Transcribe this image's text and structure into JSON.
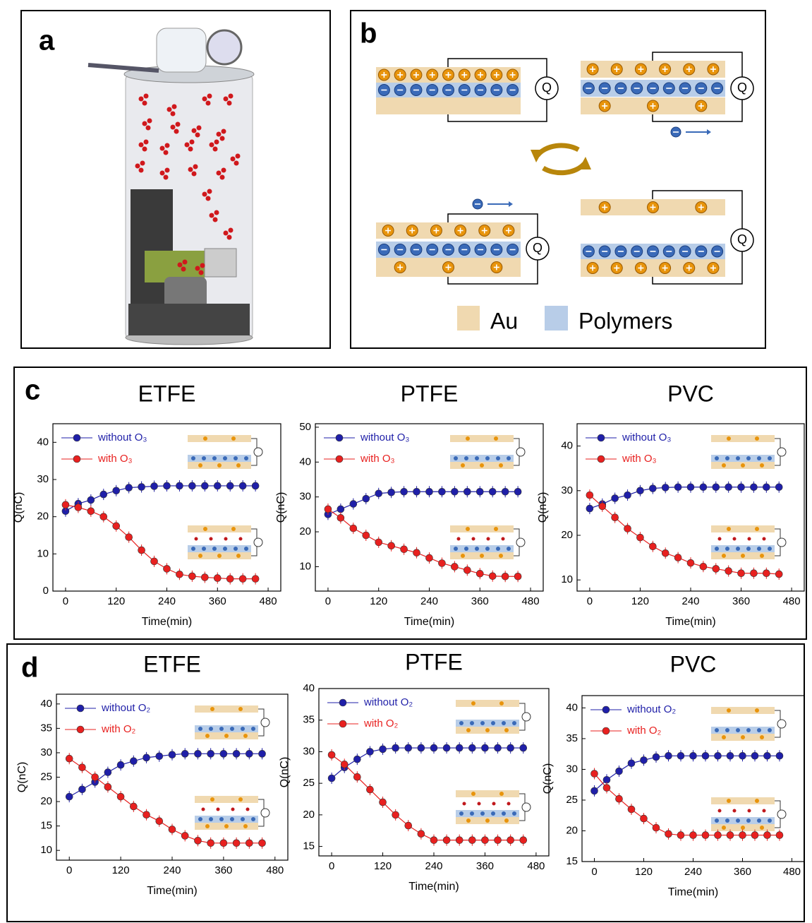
{
  "panels": {
    "a": "a",
    "b": "b",
    "c": "c",
    "d": "d"
  },
  "panel_b": {
    "meter_label": "Q",
    "legend": [
      "Au",
      "Polymers"
    ]
  },
  "chart_data": [
    {
      "type": "line",
      "title": "ETFE",
      "x_label": "Time(min)",
      "y_label": "Q(nC)",
      "x": [
        0,
        30,
        60,
        90,
        120,
        150,
        180,
        210,
        240,
        270,
        300,
        330,
        360,
        390,
        420,
        450
      ],
      "xlim": [
        -30,
        510
      ],
      "xticks": [
        0,
        120,
        240,
        360,
        480
      ],
      "ylim": [
        0,
        45
      ],
      "yticks": [
        0,
        10,
        20,
        30,
        40
      ],
      "legend": "upper left",
      "series": [
        {
          "name": "without O₃",
          "color": "#1f1fa8",
          "values": [
            21.5,
            23.5,
            24.5,
            26,
            27,
            27.8,
            28,
            28.2,
            28.3,
            28.3,
            28.3,
            28.3,
            28.3,
            28.3,
            28.3,
            28.3
          ]
        },
        {
          "name": "with O₃",
          "color": "#e8201f",
          "values": [
            23.2,
            22.5,
            21.5,
            20,
            17.5,
            14.5,
            11,
            8,
            6,
            4.5,
            4,
            3.7,
            3.5,
            3.3,
            3.3,
            3.3
          ]
        }
      ]
    },
    {
      "type": "line",
      "title": "PTFE",
      "x_label": "Time(min)",
      "y_label": "Q(nC)",
      "x": [
        0,
        30,
        60,
        90,
        120,
        150,
        180,
        210,
        240,
        270,
        300,
        330,
        360,
        390,
        420,
        450
      ],
      "xlim": [
        -30,
        510
      ],
      "xticks": [
        0,
        120,
        240,
        360,
        480
      ],
      "ylim": [
        3,
        51
      ],
      "yticks": [
        10,
        20,
        30,
        40,
        50
      ],
      "legend": "upper left",
      "series": [
        {
          "name": "without O₃",
          "color": "#1f1fa8",
          "values": [
            25,
            26.5,
            28,
            29.5,
            31,
            31.3,
            31.5,
            31.5,
            31.5,
            31.5,
            31.5,
            31.5,
            31.5,
            31.5,
            31.5,
            31.5
          ]
        },
        {
          "name": "with O₃",
          "color": "#e8201f",
          "values": [
            26.5,
            24,
            21,
            19,
            17,
            16,
            15,
            14,
            12.5,
            11,
            10,
            9,
            8,
            7.3,
            7.2,
            7.2
          ]
        }
      ]
    },
    {
      "type": "line",
      "title": "PVC",
      "x_label": "Time(min)",
      "y_label": "Q(nC)",
      "x": [
        0,
        30,
        60,
        90,
        120,
        150,
        180,
        210,
        240,
        270,
        300,
        330,
        360,
        390,
        420,
        450
      ],
      "xlim": [
        -30,
        510
      ],
      "xticks": [
        0,
        120,
        240,
        360,
        480
      ],
      "ylim": [
        7.5,
        45
      ],
      "yticks": [
        10,
        20,
        30,
        40
      ],
      "legend": "upper left",
      "series": [
        {
          "name": "without O₃",
          "color": "#1f1fa8",
          "values": [
            26,
            27,
            28.3,
            29,
            30,
            30.5,
            30.7,
            30.8,
            30.8,
            30.8,
            30.8,
            30.8,
            30.8,
            30.8,
            30.8,
            30.8
          ]
        },
        {
          "name": "with O₃",
          "color": "#e8201f",
          "values": [
            29,
            26.5,
            24,
            21.5,
            19.5,
            17.5,
            16,
            15,
            13.8,
            13,
            12.5,
            12,
            11.5,
            11.5,
            11.5,
            11.3
          ]
        }
      ]
    },
    {
      "type": "line",
      "title": "ETFE",
      "x_label": "Time(min)",
      "y_label": "Q(nC)",
      "x": [
        0,
        30,
        60,
        90,
        120,
        150,
        180,
        210,
        240,
        270,
        300,
        330,
        360,
        390,
        420,
        450
      ],
      "xlim": [
        -30,
        510
      ],
      "xticks": [
        0,
        120,
        240,
        360,
        480
      ],
      "ylim": [
        8,
        42
      ],
      "yticks": [
        10,
        15,
        20,
        25,
        30,
        35,
        40
      ],
      "legend": "upper left",
      "series": [
        {
          "name": "without O₂",
          "color": "#1f1fa8",
          "values": [
            21,
            22.5,
            24,
            26,
            27.5,
            28.3,
            29,
            29.3,
            29.6,
            29.8,
            29.8,
            29.8,
            29.8,
            29.8,
            29.8,
            29.8
          ]
        },
        {
          "name": "with O₂",
          "color": "#e8201f",
          "values": [
            28.8,
            27,
            25,
            23,
            21,
            19,
            17.3,
            16,
            14.3,
            13,
            12,
            11.5,
            11.5,
            11.5,
            11.5,
            11.5
          ]
        }
      ]
    },
    {
      "type": "line",
      "title": "PTFE",
      "x_label": "Time(min)",
      "y_label": "Q(nC)",
      "x": [
        0,
        30,
        60,
        90,
        120,
        150,
        180,
        210,
        240,
        270,
        300,
        330,
        360,
        390,
        420,
        450
      ],
      "xlim": [
        -30,
        510
      ],
      "xticks": [
        0,
        120,
        240,
        360,
        480
      ],
      "ylim": [
        13.5,
        40
      ],
      "yticks": [
        15,
        20,
        25,
        30,
        35,
        40
      ],
      "legend": "upper left",
      "series": [
        {
          "name": "without O₂",
          "color": "#1f1fa8",
          "values": [
            25.8,
            27.5,
            28.8,
            30,
            30.4,
            30.6,
            30.6,
            30.6,
            30.6,
            30.6,
            30.6,
            30.6,
            30.6,
            30.6,
            30.6,
            30.6
          ]
        },
        {
          "name": "with O₂",
          "color": "#e8201f",
          "values": [
            29.5,
            28,
            26,
            24,
            22,
            20,
            18.3,
            17,
            16,
            16,
            16,
            16,
            16,
            16,
            16,
            16
          ]
        }
      ]
    },
    {
      "type": "line",
      "title": "PVC",
      "x_label": "Time(min)",
      "y_label": "Q(nC)",
      "x": [
        0,
        30,
        60,
        90,
        120,
        150,
        180,
        210,
        240,
        270,
        300,
        330,
        360,
        390,
        420,
        450
      ],
      "xlim": [
        -30,
        510
      ],
      "xticks": [
        0,
        120,
        240,
        360,
        480
      ],
      "ylim": [
        15,
        42
      ],
      "yticks": [
        15,
        20,
        25,
        30,
        35,
        40
      ],
      "legend": "upper left",
      "series": [
        {
          "name": "without O₂",
          "color": "#1f1fa8",
          "values": [
            26.5,
            28.3,
            29.7,
            31,
            31.5,
            32,
            32.2,
            32.2,
            32.2,
            32.2,
            32.2,
            32.2,
            32.2,
            32.2,
            32.2,
            32.2
          ]
        },
        {
          "name": "with O₂",
          "color": "#e8201f",
          "values": [
            29.3,
            27,
            25.2,
            23.5,
            22,
            20.5,
            19.5,
            19.3,
            19.3,
            19.3,
            19.3,
            19.3,
            19.3,
            19.3,
            19.3,
            19.3
          ]
        }
      ]
    }
  ]
}
